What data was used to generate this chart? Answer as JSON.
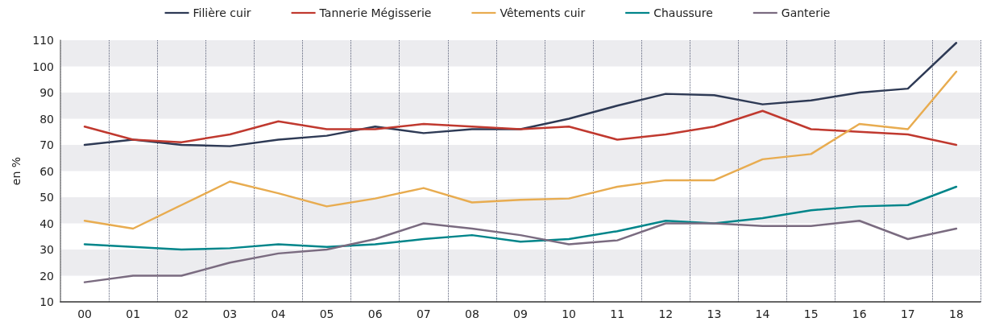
{
  "chart_data": {
    "type": "line",
    "ylabel": "en %",
    "categories": [
      "00",
      "01",
      "02",
      "03",
      "04",
      "05",
      "06",
      "07",
      "08",
      "09",
      "10",
      "11",
      "12",
      "13",
      "14",
      "15",
      "16",
      "17",
      "18"
    ],
    "series": [
      {
        "name": "Filière cuir",
        "color": "#2e3a55",
        "values": [
          70,
          72,
          70,
          69.5,
          72,
          73.5,
          77,
          74.5,
          76,
          76,
          80,
          85,
          89.5,
          89,
          85.5,
          87,
          90,
          91.5,
          109
        ]
      },
      {
        "name": "Tannerie Mégisserie",
        "color": "#c0392f",
        "values": [
          77,
          72,
          71,
          74,
          79,
          76,
          76,
          78,
          77,
          76,
          77,
          72,
          74,
          77,
          83,
          76,
          75,
          74,
          70
        ]
      },
      {
        "name": "Vêtements cuir",
        "color": "#e8ac50",
        "values": [
          41,
          38,
          47,
          56,
          51.5,
          46.5,
          49.5,
          53.5,
          48,
          49,
          49.5,
          54,
          56.5,
          56.5,
          64.5,
          66.5,
          78,
          76,
          98
        ]
      },
      {
        "name": "Chaussure",
        "color": "#00858a",
        "values": [
          32,
          31,
          30,
          30.5,
          32,
          31,
          32,
          34,
          35.5,
          33,
          34,
          37,
          41,
          40,
          42,
          45,
          46.5,
          47,
          54
        ]
      },
      {
        "name": "Ganterie",
        "color": "#7a6b80",
        "values": [
          17.5,
          20,
          20,
          25,
          28.5,
          30,
          34,
          40,
          38,
          35.5,
          32,
          33.5,
          40,
          40,
          39,
          39,
          41,
          34,
          38
        ]
      }
    ],
    "ylim": [
      10,
      110
    ],
    "yticks": [
      10,
      20,
      30,
      40,
      50,
      60,
      70,
      80,
      90,
      100,
      110
    ],
    "grid": true,
    "legend": "top",
    "marker": "none",
    "line_style": "solid"
  }
}
